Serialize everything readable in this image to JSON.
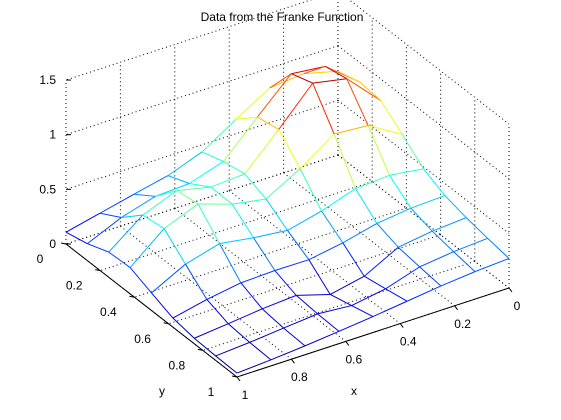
{
  "chart_data": {
    "type": "surface",
    "title": "Data from the Franke Function",
    "xlabel": "x",
    "ylabel": "y",
    "zlabel": "",
    "xlim": [
      0,
      1
    ],
    "ylim": [
      0,
      1
    ],
    "zlim": [
      0,
      1.5
    ],
    "xticks": [
      "0",
      "0.2",
      "0.4",
      "0.6",
      "0.8",
      "1"
    ],
    "yticks": [
      "0",
      "0.2",
      "0.4",
      "0.6",
      "0.8",
      "1"
    ],
    "zticks": [
      "0",
      "0.5",
      "1",
      "1.5"
    ],
    "grid": true,
    "colormap": "jet",
    "x": [
      0,
      0.125,
      0.25,
      0.375,
      0.5,
      0.625,
      0.75,
      0.875,
      1
    ],
    "y": [
      0,
      0.125,
      0.25,
      0.375,
      0.5,
      0.625,
      0.75,
      0.875,
      1
    ],
    "z_description": "rows indexed by y, columns by x; z is sampled from the Franke function on a 9x9 grid"
  }
}
